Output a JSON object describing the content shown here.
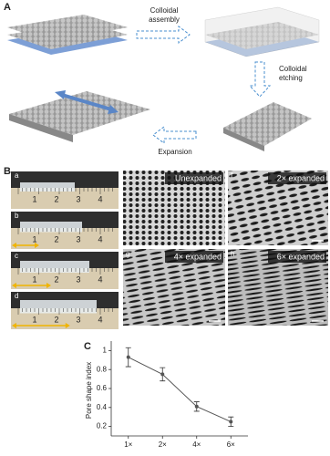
{
  "panel_a": {
    "label": "A",
    "assembly": [
      "Colloidal",
      "assembly"
    ],
    "etching": [
      "Colloidal",
      "etching"
    ],
    "expansion": "Expansion"
  },
  "panel_b": {
    "label": "B",
    "photos": [
      "a",
      "b",
      "c",
      "d"
    ],
    "ruler": [
      "1",
      "2",
      "3",
      "4"
    ],
    "sem": [
      {
        "tag": "e",
        "caption": "Unexpanded"
      },
      {
        "tag": "f",
        "caption": "2× expanded"
      },
      {
        "tag": "g",
        "caption": "4× expanded"
      },
      {
        "tag": "h",
        "caption": "6× expanded"
      }
    ]
  },
  "chart_data": {
    "type": "line",
    "label": "C",
    "y_label": "Pore shape index",
    "categories": [
      "1×",
      "2×",
      "4×",
      "6×"
    ],
    "values": [
      0.93,
      0.75,
      0.41,
      0.25
    ],
    "errors": [
      0.1,
      0.07,
      0.05,
      0.05
    ],
    "color": "#555555",
    "ylim": [
      0.1,
      1.1
    ],
    "yticks": [
      0.2,
      0.4,
      0.6,
      0.8,
      1.0
    ]
  }
}
